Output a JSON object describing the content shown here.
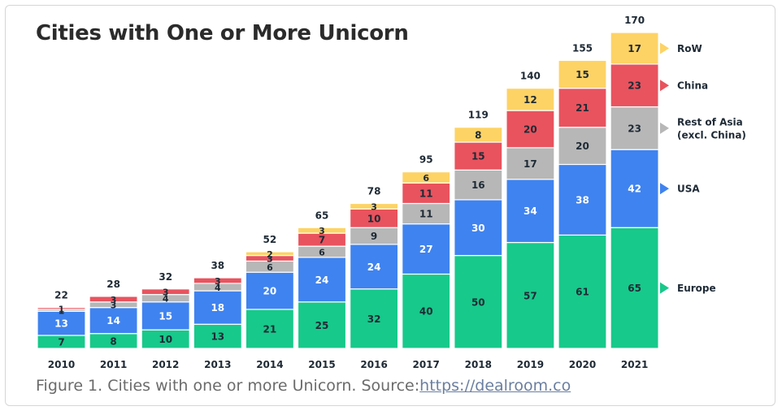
{
  "figure": {
    "caption_text": "Figure 1. Cities with one or more Unicorn. Source:",
    "caption_link": "https://dealroom.co"
  },
  "chart_data": {
    "type": "bar",
    "stacked": true,
    "title": "Cities with One or More Unicorn",
    "xlabel": "",
    "ylabel": "",
    "ylim": [
      0,
      170
    ],
    "categories": [
      "2010",
      "2011",
      "2012",
      "2013",
      "2014",
      "2015",
      "2016",
      "2017",
      "2018",
      "2019",
      "2020",
      "2021"
    ],
    "totals": [
      22,
      28,
      32,
      38,
      52,
      65,
      78,
      95,
      119,
      140,
      155,
      170
    ],
    "series": [
      {
        "name": "Europe",
        "color": "#17c98b",
        "label_color": "#1e2a35",
        "values": [
          7,
          8,
          10,
          13,
          21,
          25,
          32,
          40,
          50,
          57,
          61,
          65
        ]
      },
      {
        "name": "USA",
        "color": "#3f83f0",
        "label_color": "#ffffff",
        "values": [
          13,
          14,
          15,
          18,
          20,
          24,
          24,
          27,
          30,
          34,
          38,
          42
        ]
      },
      {
        "name": "Rest of Asia (excl. China)",
        "legend_lines": [
          "Rest of Asia",
          "(excl. China)"
        ],
        "color": "#b7b7b7",
        "label_color": "#1e2a35",
        "values": [
          1,
          3,
          4,
          4,
          6,
          6,
          9,
          11,
          16,
          17,
          20,
          23
        ]
      },
      {
        "name": "China",
        "color": "#e8535e",
        "label_color": "#1e2a35",
        "values": [
          1,
          3,
          3,
          3,
          3,
          7,
          10,
          11,
          15,
          20,
          21,
          23
        ]
      },
      {
        "name": "RoW",
        "color": "#fdd365",
        "label_color": "#1e2a35",
        "values": [
          0,
          0,
          0,
          0,
          2,
          3,
          3,
          6,
          8,
          12,
          15,
          17
        ]
      }
    ],
    "legend_order": [
      "RoW",
      "China",
      "Rest of Asia (excl. China)",
      "USA",
      "Europe"
    ],
    "legend_position": "right"
  }
}
